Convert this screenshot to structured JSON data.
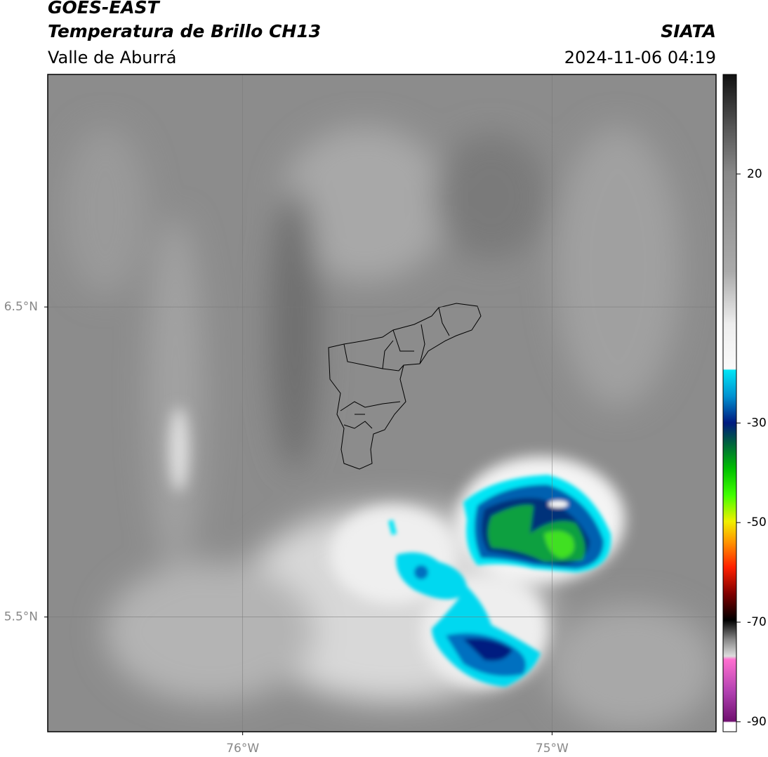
{
  "header": {
    "title": "GOES-EAST",
    "subtitle": "Temperatura de Brillo CH13",
    "region": "Valle de Aburrá",
    "source": "SIATA",
    "datetime": "2024-11-06 04:19"
  },
  "map": {
    "xlim": [
      -76.63,
      -74.47
    ],
    "ylim": [
      5.13,
      7.25
    ],
    "xticks": [
      {
        "value": -76,
        "label": "76°W"
      },
      {
        "value": -75,
        "label": "75°W"
      }
    ],
    "yticks": [
      {
        "value": 6.5,
        "label": "6.5°N"
      },
      {
        "value": 5.5,
        "label": "5.5°N"
      }
    ]
  },
  "colorbar": {
    "lim": [
      -92,
      40
    ],
    "ticks": [
      20,
      -30,
      -50,
      -70,
      -90
    ]
  }
}
